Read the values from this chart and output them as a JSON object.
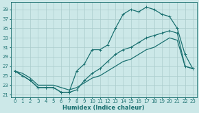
{
  "xlabel": "Humidex (Indice chaleur)",
  "xlim": [
    -0.5,
    23.5
  ],
  "ylim": [
    20.5,
    40.5
  ],
  "yticks": [
    21,
    23,
    25,
    27,
    29,
    31,
    33,
    35,
    37,
    39
  ],
  "xticks": [
    0,
    1,
    2,
    3,
    4,
    5,
    6,
    7,
    8,
    9,
    10,
    11,
    12,
    13,
    14,
    15,
    16,
    17,
    18,
    19,
    20,
    21,
    22,
    23
  ],
  "bg_color": "#cce8e8",
  "grid_color": "#aacccc",
  "line_color": "#1a7070",
  "line1_x": [
    0,
    1,
    2,
    3,
    4,
    5,
    6,
    7,
    8,
    9,
    10,
    11,
    12,
    13,
    14,
    15,
    16,
    17,
    18,
    19,
    20,
    21,
    22,
    23
  ],
  "line1_y": [
    26,
    25,
    24,
    22.5,
    22.5,
    22.5,
    21.5,
    21.5,
    26,
    27.5,
    30.5,
    30.5,
    31.5,
    35,
    38,
    39,
    38.5,
    39.5,
    39,
    38,
    37.5,
    35,
    29.5,
    26.5
  ],
  "line2_x": [
    0,
    1,
    2,
    3,
    4,
    5,
    6,
    7,
    8,
    9,
    10,
    11,
    12,
    13,
    14,
    15,
    16,
    17,
    18,
    19,
    20,
    21,
    22,
    23
  ],
  "line2_y": [
    26,
    25,
    24,
    22.5,
    22.5,
    22.5,
    21.5,
    21.5,
    22,
    24,
    25.5,
    26.5,
    28,
    29.5,
    30.5,
    31,
    32,
    33,
    33.5,
    34,
    34.5,
    34,
    27,
    26.5
  ],
  "line3_x": [
    0,
    1,
    2,
    3,
    4,
    5,
    6,
    7,
    8,
    9,
    10,
    11,
    12,
    13,
    14,
    15,
    16,
    17,
    18,
    19,
    20,
    21,
    22,
    23
  ],
  "line3_y": [
    26,
    25.5,
    24.5,
    23,
    23,
    23,
    22.5,
    22,
    22.5,
    23.5,
    24.5,
    25,
    26,
    27,
    28,
    28.5,
    29.5,
    30.5,
    31,
    32,
    33,
    32.5,
    27,
    26.5
  ],
  "linewidth": 0.9,
  "markersize": 3,
  "tick_fontsize": 5,
  "xlabel_fontsize": 6
}
